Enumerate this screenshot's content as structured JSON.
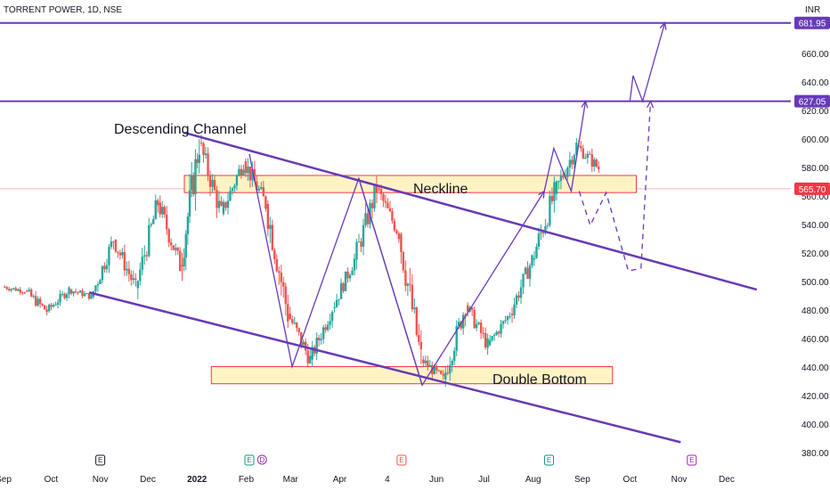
{
  "header": {
    "symbol_line": "TORRENT POWER, 1D, NSE",
    "currency": "INR"
  },
  "colors": {
    "up": "#26a69a",
    "down": "#ef5350",
    "purple": "#673ab7",
    "zone_fill": "#fff3c4",
    "zone_border": "#f23645",
    "price_line": "#f8b8bd",
    "price_badge": "#f23645",
    "level_badge": "#673ab7",
    "earnings": "#ef5350",
    "dividend": "#9c27b0",
    "event_neutral": "#131722",
    "event_green": "#089981"
  },
  "chart_data": {
    "type": "candlestick",
    "title": "TORRENT POWER, 1D, NSE",
    "ylabel": "INR",
    "ylim": [
      372,
      698
    ],
    "y_ticks": [
      380,
      400,
      420,
      440,
      460,
      480,
      500,
      520,
      540,
      560,
      580,
      600,
      620,
      640,
      660
    ],
    "x_ticks": [
      "Sep",
      "Oct",
      "Nov",
      "Dec",
      "2022",
      "Feb",
      "Mar",
      "Apr",
      "4",
      "Jun",
      "Jul",
      "Aug",
      "Sep",
      "Oct",
      "Nov",
      "Dec"
    ],
    "series": [
      {
        "date": "2021-09-01",
        "o": 497,
        "h": 503,
        "l": 488,
        "c": 495
      },
      {
        "date": "2021-09-15",
        "o": 494,
        "h": 497,
        "l": 466,
        "c": 480
      },
      {
        "date": "2021-09-29",
        "o": 480,
        "h": 499,
        "l": 474,
        "c": 496
      },
      {
        "date": "2021-10-13",
        "o": 495,
        "h": 502,
        "l": 484,
        "c": 490
      },
      {
        "date": "2021-10-27",
        "o": 490,
        "h": 534,
        "l": 486,
        "c": 530
      },
      {
        "date": "2021-11-10",
        "o": 530,
        "h": 536,
        "l": 488,
        "c": 495
      },
      {
        "date": "2021-11-24",
        "o": 496,
        "h": 560,
        "l": 494,
        "c": 556
      },
      {
        "date": "2021-12-08",
        "o": 556,
        "h": 562,
        "l": 505,
        "c": 510
      },
      {
        "date": "2021-12-22",
        "o": 512,
        "h": 610,
        "l": 510,
        "c": 598
      },
      {
        "date": "2022-01-03",
        "o": 598,
        "h": 604,
        "l": 540,
        "c": 548
      },
      {
        "date": "2022-01-17",
        "o": 548,
        "h": 590,
        "l": 542,
        "c": 585
      },
      {
        "date": "2022-01-31",
        "o": 585,
        "h": 592,
        "l": 540,
        "c": 555
      },
      {
        "date": "2022-02-14",
        "o": 555,
        "h": 558,
        "l": 470,
        "c": 478
      },
      {
        "date": "2022-02-28",
        "o": 478,
        "h": 482,
        "l": 433,
        "c": 446
      },
      {
        "date": "2022-03-14",
        "o": 446,
        "h": 488,
        "l": 444,
        "c": 482
      },
      {
        "date": "2022-03-28",
        "o": 482,
        "h": 520,
        "l": 478,
        "c": 516
      },
      {
        "date": "2022-04-11",
        "o": 516,
        "h": 576,
        "l": 512,
        "c": 568
      },
      {
        "date": "2022-04-25",
        "o": 566,
        "h": 572,
        "l": 528,
        "c": 534
      },
      {
        "date": "2022-05-09",
        "o": 534,
        "h": 538,
        "l": 440,
        "c": 448
      },
      {
        "date": "2022-05-23",
        "o": 446,
        "h": 450,
        "l": 418,
        "c": 430
      },
      {
        "date": "2022-06-06",
        "o": 432,
        "h": 490,
        "l": 428,
        "c": 484
      },
      {
        "date": "2022-06-20",
        "o": 484,
        "h": 492,
        "l": 448,
        "c": 456
      },
      {
        "date": "2022-07-04",
        "o": 456,
        "h": 484,
        "l": 452,
        "c": 478
      },
      {
        "date": "2022-07-18",
        "o": 478,
        "h": 520,
        "l": 472,
        "c": 516
      },
      {
        "date": "2022-08-01",
        "o": 516,
        "h": 568,
        "l": 500,
        "c": 562
      },
      {
        "date": "2022-08-15",
        "o": 562,
        "h": 608,
        "l": 556,
        "c": 596
      },
      {
        "date": "2022-08-29",
        "o": 596,
        "h": 600,
        "l": 564,
        "c": 580
      },
      {
        "date": "2022-09-12",
        "o": 580,
        "h": 590,
        "l": 564,
        "c": 566
      }
    ],
    "current_price": 565.7,
    "levels": [
      681.95,
      627.05
    ],
    "channel": [
      {
        "name": "Descending Channel upper",
        "from": {
          "date": "2021-12-24",
          "price": 605
        },
        "to": {
          "date": "2022-12-20",
          "price": 495
        }
      },
      {
        "name": "Descending Channel lower",
        "from": {
          "date": "2021-10-25",
          "price": 493
        },
        "to": {
          "date": "2022-11-02",
          "price": 388
        }
      }
    ],
    "zones": [
      {
        "label": "Neckline",
        "top": 575,
        "bottom": 563,
        "from": "2021-12-24",
        "to": "2022-10-05"
      },
      {
        "label": "Double Bottom",
        "top": 441,
        "bottom": 429,
        "from": "2022-01-10",
        "to": "2022-09-20"
      }
    ],
    "pattern_path": [
      {
        "date": "2022-02-03",
        "price": 590
      },
      {
        "date": "2022-03-02",
        "price": 441
      },
      {
        "date": "2022-04-13",
        "price": 573
      },
      {
        "date": "2022-05-23",
        "price": 428
      },
      {
        "date": "2022-08-08",
        "price": 564
      },
      {
        "date": "2022-08-14",
        "price": 594
      },
      {
        "date": "2022-08-25",
        "price": 564
      },
      {
        "date": "2022-09-03",
        "price": 627
      }
    ],
    "projection": [
      {
        "date": "2022-10-01",
        "price": 627
      },
      {
        "date": "2022-10-03",
        "price": 645
      },
      {
        "date": "2022-10-09",
        "price": 627
      },
      {
        "date": "2022-10-23",
        "price": 682
      }
    ],
    "dashed_projection": [
      {
        "date": "2022-08-30",
        "price": 564
      },
      {
        "date": "2022-09-06",
        "price": 540
      },
      {
        "date": "2022-09-16",
        "price": 563
      },
      {
        "date": "2022-09-30",
        "price": 508
      },
      {
        "date": "2022-10-08",
        "price": 510
      },
      {
        "date": "2022-10-14",
        "price": 627
      }
    ],
    "events": [
      {
        "letter": "E",
        "date": "2021-11-01",
        "kind": "neutral"
      },
      {
        "letter": "E",
        "date": "2022-02-03",
        "kind": "green"
      },
      {
        "letter": "D",
        "date": "2022-02-11",
        "kind": "dividend"
      },
      {
        "letter": "E",
        "date": "2022-05-10",
        "kind": "earnings"
      },
      {
        "letter": "E",
        "date": "2022-08-11",
        "kind": "green"
      },
      {
        "letter": "E",
        "date": "2022-11-09",
        "kind": "dividend"
      }
    ],
    "annotations": [
      "Descending Channel",
      "Neckline",
      "Double Bottom"
    ]
  },
  "labels": {
    "descending_channel": "Descending Channel",
    "neckline": "Neckline",
    "double_bottom": "Double Bottom",
    "price_badge": "565.70",
    "level_high": "681.95",
    "level_mid": "627.05"
  }
}
